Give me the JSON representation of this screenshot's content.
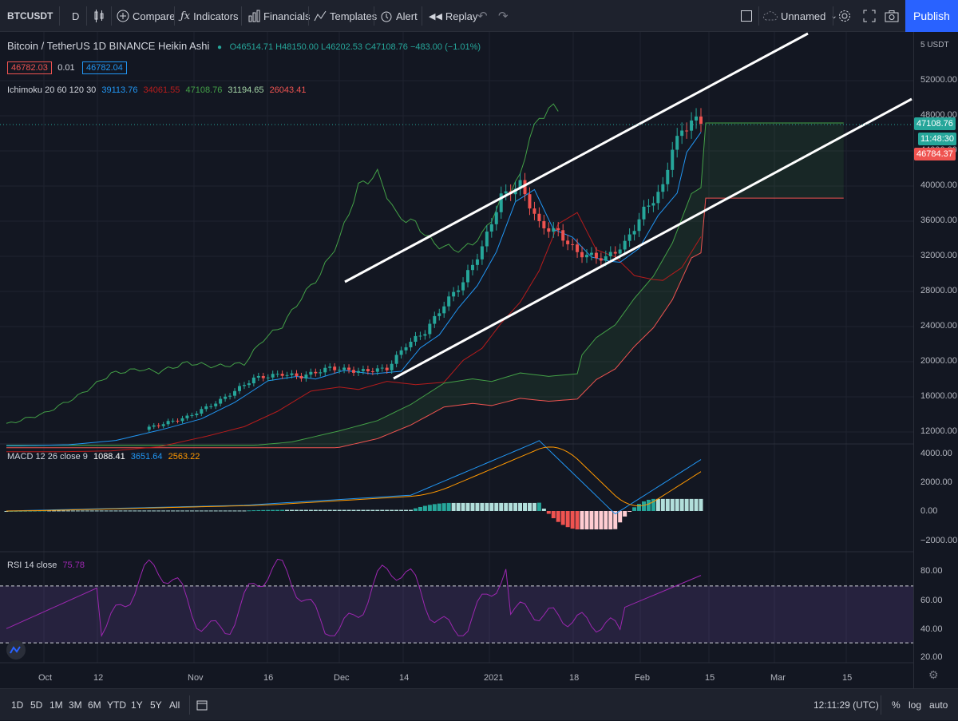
{
  "toolbar": {
    "symbol": "BTCUSDT",
    "interval": "D",
    "compare": "Compare",
    "indicators": "Indicators",
    "financials": "Financials",
    "templates": "Templates",
    "alert": "Alert",
    "replay": "Replay",
    "layout_name": "Unnamed",
    "publish": "Publish"
  },
  "legend": {
    "title": "Bitcoin / TetherUS  1D  BINANCE  Heikin Ashi",
    "ohlc": "O46514.71  H48150.00  L46202.53  C47108.76  −483.00 (−1.01%)",
    "bid": "46782.03",
    "spread": "0.01",
    "ask": "46782.04",
    "ichimoku_label": "Ichimoku 20 60 120 30",
    "ichimoku_values": [
      "39113.76",
      "34061.55",
      "47108.76",
      "31194.65",
      "26043.41"
    ]
  },
  "macd_legend": {
    "label": "MACD 12 26 close 9",
    "values": [
      "1088.41",
      "3651.64",
      "2563.22"
    ]
  },
  "rsi_legend": {
    "label": "RSI 14 close",
    "value": "75.78"
  },
  "price_scale": {
    "currency": "5 USDT",
    "labels": [
      "52000.00",
      "48000.00",
      "44000.00",
      "40000.00",
      "36000.00",
      "32000.00",
      "28000.00",
      "24000.00",
      "20000.00",
      "16000.00",
      "12000.00"
    ],
    "macd_labels": [
      "4000.00",
      "2000.00",
      "0.00",
      "−2000.00"
    ],
    "rsi_labels": [
      "80.00",
      "60.00",
      "40.00",
      "20.00"
    ],
    "last_price": "47108.76",
    "countdown": "11:48:30",
    "ichimoku_tag": "46784.37"
  },
  "time_axis": [
    "Oct",
    "12",
    "Nov",
    "16",
    "Dec",
    "14",
    "2021",
    "18",
    "Feb",
    "15",
    "Mar",
    "15"
  ],
  "bottom": {
    "ranges": [
      "1D",
      "5D",
      "1M",
      "3M",
      "6M",
      "YTD",
      "1Y",
      "5Y",
      "All"
    ],
    "time": "12:11:29 (UTC)",
    "percent": "%",
    "log": "log",
    "auto": "auto"
  },
  "colors": {
    "up": "#26a69a",
    "down": "#ef5350",
    "accent": "#2962ff",
    "tenkan": "#2196f3",
    "kijun": "#b71c1c",
    "chikou": "#43a047",
    "rsi": "#9c27b0",
    "macd_signal": "#ff9800"
  }
}
